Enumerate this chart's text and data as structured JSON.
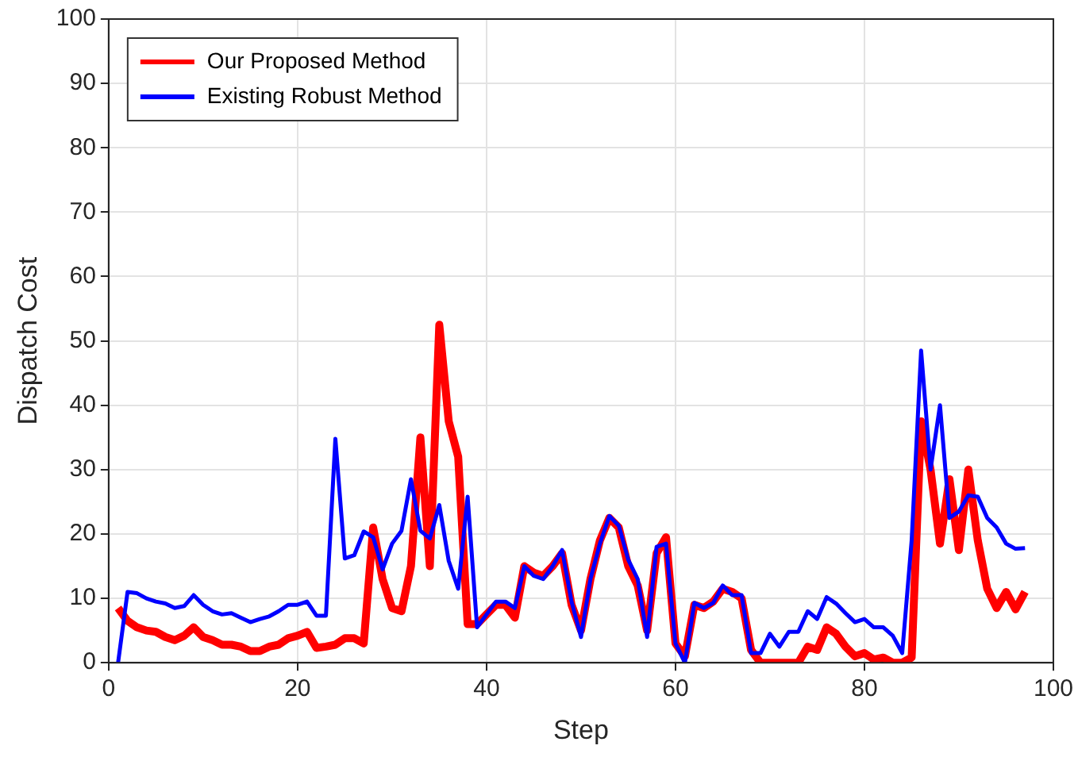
{
  "chart_data": {
    "type": "line",
    "xlabel": "Step",
    "ylabel": "Dispatch Cost",
    "x": [
      1,
      2,
      3,
      4,
      5,
      6,
      7,
      8,
      9,
      10,
      11,
      12,
      13,
      14,
      15,
      16,
      17,
      18,
      19,
      20,
      21,
      22,
      23,
      24,
      25,
      26,
      27,
      28,
      29,
      30,
      31,
      32,
      33,
      34,
      35,
      36,
      37,
      38,
      39,
      40,
      41,
      42,
      43,
      44,
      45,
      46,
      47,
      48,
      49,
      50,
      51,
      52,
      53,
      54,
      55,
      56,
      57,
      58,
      59,
      60,
      61,
      62,
      63,
      64,
      65,
      66,
      67,
      68,
      69,
      70,
      71,
      72,
      73,
      74,
      75,
      76,
      77,
      78,
      79,
      80,
      81,
      82,
      83,
      84,
      85,
      86,
      87,
      88,
      89,
      90,
      91,
      92,
      93,
      94,
      95,
      96,
      97
    ],
    "series": [
      {
        "name": "Our Proposed Method",
        "color": "#ff0000",
        "values": [
          8.5,
          6.5,
          5.5,
          5,
          4.8,
          4,
          3.5,
          4.2,
          5.5,
          4,
          3.5,
          2.8,
          2.8,
          2.5,
          1.8,
          1.8,
          2.5,
          2.8,
          3.8,
          4.2,
          4.8,
          2.3,
          2.5,
          2.8,
          3.8,
          3.8,
          3,
          21,
          13,
          8.5,
          8,
          15,
          35,
          15,
          52.5,
          37.5,
          32,
          6,
          6,
          7.5,
          9,
          9,
          7,
          15,
          14,
          13.5,
          15,
          17,
          9,
          5,
          13,
          19,
          22.5,
          21,
          15,
          12,
          5,
          17,
          19.5,
          3,
          1,
          9,
          8.5,
          9.5,
          11.5,
          11,
          10,
          2,
          0,
          0,
          0,
          0,
          0,
          2.5,
          2,
          5.5,
          4.5,
          2.5,
          1,
          1.5,
          0.5,
          0.8,
          0,
          0,
          0.8,
          37.5,
          30,
          18.5,
          28.5,
          17.5,
          30,
          19,
          11.5,
          8.5,
          11,
          8.3,
          11
        ]
      },
      {
        "name": "Existing Robust Method",
        "color": "#0000ff",
        "values": [
          0,
          11,
          10.8,
          10,
          9.5,
          9.2,
          8.5,
          8.8,
          10.5,
          9,
          8,
          7.5,
          7.7,
          7,
          6.3,
          6.8,
          7.2,
          8,
          9,
          9,
          9.5,
          7.3,
          7.3,
          34.8,
          16.2,
          16.7,
          20.4,
          19.5,
          14.5,
          18.5,
          20.5,
          28.5,
          20.5,
          19.3,
          24.5,
          15.8,
          11.5,
          25.8,
          5.5,
          7.5,
          9.5,
          9.5,
          8.5,
          15,
          13.5,
          13,
          15,
          17.5,
          9.5,
          4,
          13,
          18.5,
          22.8,
          21.3,
          16,
          13,
          4,
          18,
          18.5,
          3,
          0,
          9.3,
          8.5,
          9.3,
          12,
          10.5,
          10.5,
          1.5,
          1.5,
          4.5,
          2.5,
          4.8,
          4.8,
          8,
          6.8,
          10.2,
          9.2,
          7.7,
          6.3,
          6.8,
          5.5,
          5.5,
          4.2,
          1.5,
          19,
          48.5,
          30,
          40,
          22.5,
          23.5,
          26,
          25.8,
          22.5,
          21,
          18.5,
          17.7,
          17.8
        ]
      }
    ],
    "xlim": [
      0,
      100
    ],
    "xticks": [
      0,
      20,
      40,
      60,
      80,
      100
    ],
    "ylim": [
      0,
      100
    ],
    "yticks": [
      0,
      10,
      20,
      30,
      40,
      50,
      60,
      70,
      80,
      90,
      100
    ],
    "grid": true,
    "legend": "top left",
    "line_style": "solid",
    "marker": "none"
  }
}
